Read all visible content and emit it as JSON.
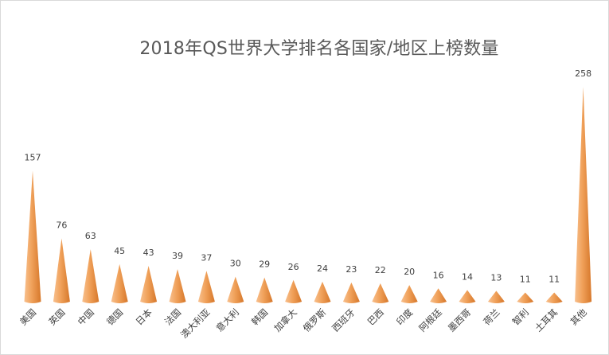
{
  "chart_data": {
    "type": "bar",
    "title": "2018年QS世界大学排名各国家/地区上榜数量",
    "categories": [
      "美国",
      "英国",
      "中国",
      "德国",
      "日本",
      "法国",
      "澳大利亚",
      "意大利",
      "韩国",
      "加拿大",
      "俄罗斯",
      "西班牙",
      "巴西",
      "印度",
      "阿根廷",
      "墨西哥",
      "荷兰",
      "智利",
      "土耳其",
      "其他"
    ],
    "values": [
      157,
      76,
      63,
      45,
      43,
      39,
      37,
      30,
      29,
      26,
      24,
      23,
      22,
      20,
      16,
      14,
      13,
      11,
      11,
      258
    ],
    "data_labels": [
      "157",
      "76",
      "63",
      "45",
      "43",
      "39",
      "37",
      "30",
      "29",
      "26",
      "24",
      "23",
      "22",
      "20",
      "16",
      "14",
      "13",
      "11",
      "11",
      "258"
    ],
    "bar_shape": "cone",
    "ylim": [
      0,
      270
    ],
    "grid": false,
    "legend": "none",
    "colors": {
      "light": "#f8c08e",
      "mid": "#f0a15a",
      "dark": "#d6772a"
    }
  }
}
